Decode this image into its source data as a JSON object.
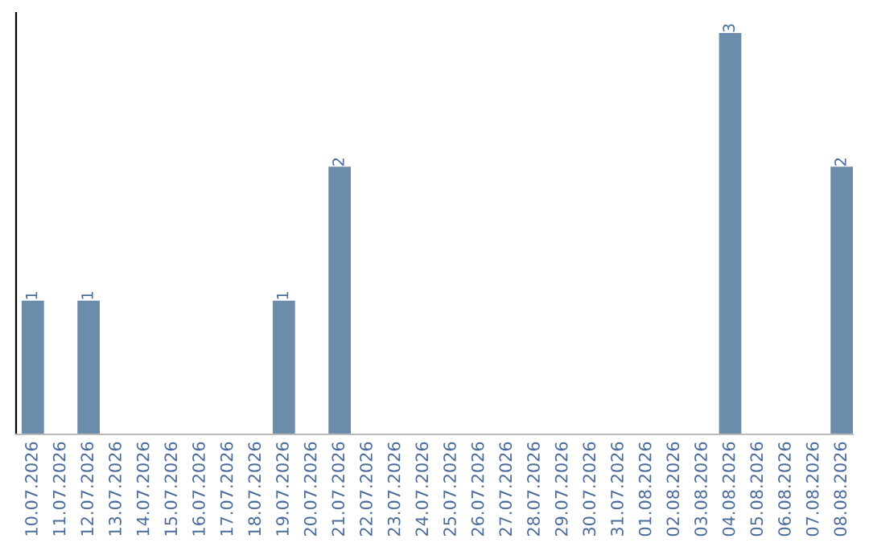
{
  "chart_data": {
    "type": "bar",
    "categories": [
      "10.07.2026",
      "11.07.2026",
      "12.07.2026",
      "13.07.2026",
      "14.07.2026",
      "15.07.2026",
      "16.07.2026",
      "17.07.2026",
      "18.07.2026",
      "19.07.2026",
      "20.07.2026",
      "21.07.2026",
      "22.07.2026",
      "23.07.2026",
      "24.07.2026",
      "25.07.2026",
      "26.07.2026",
      "27.07.2026",
      "28.07.2026",
      "29.07.2026",
      "30.07.2026",
      "31.07.2026",
      "01.08.2026",
      "02.08.2026",
      "03.08.2026",
      "04.08.2026",
      "05.08.2026",
      "06.08.2026",
      "07.08.2026",
      "08.08.2026"
    ],
    "values": [
      1,
      0,
      1,
      0,
      0,
      0,
      0,
      0,
      0,
      1,
      0,
      2,
      0,
      0,
      0,
      0,
      0,
      0,
      0,
      0,
      0,
      0,
      0,
      0,
      0,
      3,
      0,
      0,
      0,
      2
    ],
    "value_labels": [
      "1",
      null,
      "1",
      null,
      null,
      null,
      null,
      null,
      null,
      "1",
      null,
      "2",
      null,
      null,
      null,
      null,
      null,
      null,
      null,
      null,
      null,
      null,
      null,
      null,
      null,
      "3",
      null,
      null,
      null,
      "2"
    ],
    "color": "#6b8cab",
    "grid": false,
    "legend": false
  }
}
